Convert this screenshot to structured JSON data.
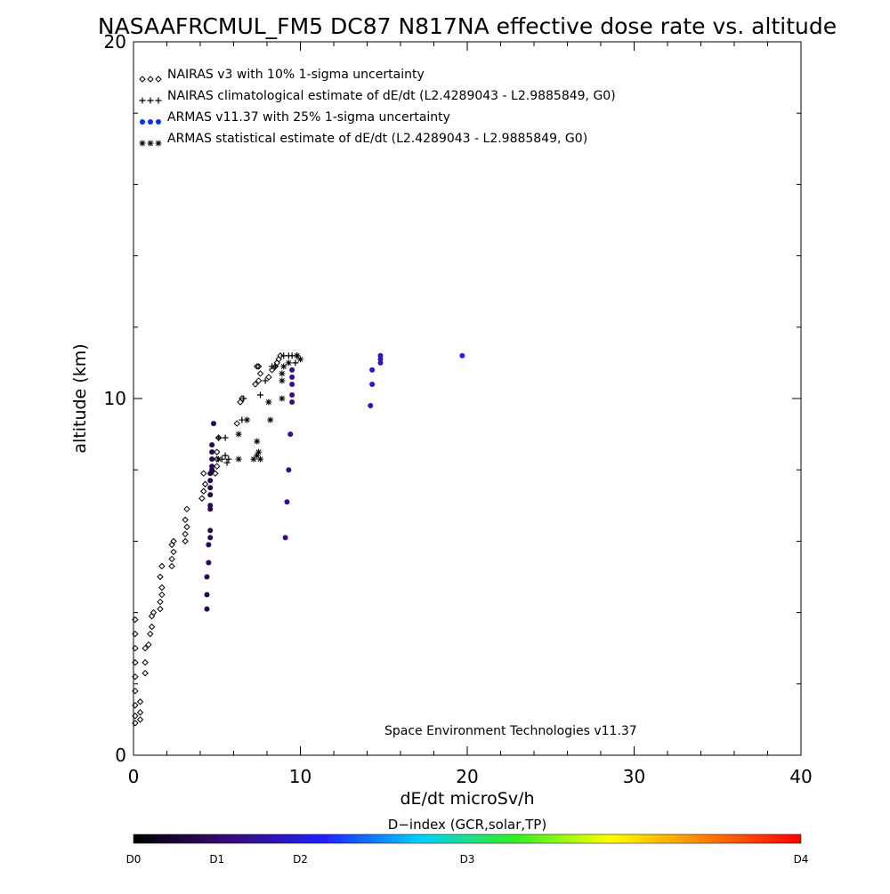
{
  "chart_data": {
    "type": "scatter",
    "title": "NASAAFRCMUL_FM5 DC87 N817NA effective dose rate vs. altitude",
    "xlabel": "dE/dt microSv/h",
    "ylabel": "altitude (km)",
    "xlim": [
      0,
      40
    ],
    "ylim": [
      0,
      20
    ],
    "x_ticks": [
      "0",
      "10",
      "20",
      "30",
      "40"
    ],
    "y_ticks": [
      "0",
      "10",
      "20"
    ],
    "grid": false,
    "legend_position": "top-left",
    "annotation": "Space Environment Technologies v11.37",
    "series": [
      {
        "name": "NAIRAS v3 with 10% 1-sigma uncertainty",
        "marker": "diamond",
        "color": "#000000",
        "points": [
          [
            0.1,
            0.9
          ],
          [
            0.1,
            1.1
          ],
          [
            0.1,
            1.4
          ],
          [
            0.1,
            1.8
          ],
          [
            0.1,
            2.2
          ],
          [
            0.1,
            2.6
          ],
          [
            0.1,
            3.0
          ],
          [
            0.1,
            3.4
          ],
          [
            0.1,
            3.8
          ],
          [
            0.4,
            1.0
          ],
          [
            0.4,
            1.2
          ],
          [
            0.4,
            1.5
          ],
          [
            0.7,
            2.3
          ],
          [
            0.7,
            2.6
          ],
          [
            0.7,
            3.0
          ],
          [
            0.9,
            3.1
          ],
          [
            1.0,
            3.4
          ],
          [
            1.1,
            3.6
          ],
          [
            1.1,
            3.9
          ],
          [
            1.2,
            4.0
          ],
          [
            1.6,
            4.1
          ],
          [
            1.6,
            4.3
          ],
          [
            1.7,
            4.5
          ],
          [
            1.7,
            4.7
          ],
          [
            1.6,
            5.0
          ],
          [
            1.7,
            5.3
          ],
          [
            2.3,
            5.3
          ],
          [
            2.3,
            5.5
          ],
          [
            2.4,
            5.7
          ],
          [
            2.3,
            5.9
          ],
          [
            2.4,
            6.0
          ],
          [
            3.1,
            6.0
          ],
          [
            3.1,
            6.2
          ],
          [
            3.2,
            6.4
          ],
          [
            3.1,
            6.6
          ],
          [
            3.2,
            6.9
          ],
          [
            4.1,
            7.2
          ],
          [
            4.2,
            7.4
          ],
          [
            4.3,
            7.6
          ],
          [
            4.2,
            7.9
          ],
          [
            4.9,
            7.9
          ],
          [
            5.0,
            8.1
          ],
          [
            5.0,
            8.3
          ],
          [
            5.0,
            8.5
          ],
          [
            5.1,
            8.9
          ],
          [
            6.2,
            9.3
          ],
          [
            6.4,
            9.9
          ],
          [
            6.5,
            10.0
          ],
          [
            7.3,
            10.4
          ],
          [
            7.5,
            10.5
          ],
          [
            7.6,
            10.7
          ],
          [
            7.5,
            10.9
          ],
          [
            7.4,
            10.9
          ],
          [
            8.1,
            10.6
          ],
          [
            8.3,
            10.8
          ],
          [
            8.5,
            10.9
          ],
          [
            8.6,
            11.0
          ],
          [
            8.7,
            11.1
          ],
          [
            8.8,
            11.2
          ]
        ]
      },
      {
        "name": "NAIRAS climatological estimate of dE/dt (L2.4289043 - L2.9885849, G0)",
        "marker": "plus",
        "color": "#000000",
        "points": [
          [
            5.3,
            8.3
          ],
          [
            5.5,
            8.4
          ],
          [
            5.7,
            8.3
          ],
          [
            5.6,
            8.2
          ],
          [
            5.1,
            8.9
          ],
          [
            5.5,
            8.9
          ],
          [
            6.5,
            9.4
          ],
          [
            6.6,
            10.0
          ],
          [
            7.6,
            10.1
          ],
          [
            7.9,
            10.5
          ],
          [
            8.3,
            10.9
          ],
          [
            8.5,
            10.9
          ],
          [
            9.0,
            11.2
          ],
          [
            9.3,
            11.2
          ],
          [
            9.5,
            11.2
          ],
          [
            9.8,
            11.2
          ],
          [
            9.7,
            11.0
          ]
        ]
      },
      {
        "name": "ARMAS v11.37 with 25% 1-sigma uncertainty",
        "marker": "dot",
        "color": "#0000ff",
        "points": [
          [
            4.4,
            4.1
          ],
          [
            4.4,
            4.5
          ],
          [
            4.4,
            5.0
          ],
          [
            4.5,
            5.4
          ],
          [
            4.5,
            5.9
          ],
          [
            4.6,
            6.1
          ],
          [
            4.6,
            6.3
          ],
          [
            4.6,
            6.9
          ],
          [
            4.6,
            7.0
          ],
          [
            4.6,
            7.3
          ],
          [
            4.6,
            7.5
          ],
          [
            4.6,
            7.7
          ],
          [
            4.6,
            7.9
          ],
          [
            4.7,
            8.0
          ],
          [
            4.7,
            8.1
          ],
          [
            4.7,
            8.3
          ],
          [
            4.7,
            8.5
          ],
          [
            4.7,
            8.7
          ],
          [
            4.8,
            9.3
          ],
          [
            9.1,
            6.1
          ],
          [
            9.2,
            7.1
          ],
          [
            9.3,
            8.0
          ],
          [
            9.4,
            9.0
          ],
          [
            9.5,
            9.9
          ],
          [
            9.5,
            10.1
          ],
          [
            9.5,
            10.4
          ],
          [
            9.5,
            10.6
          ],
          [
            9.5,
            10.8
          ],
          [
            14.2,
            9.8
          ],
          [
            14.3,
            10.4
          ],
          [
            14.3,
            10.8
          ],
          [
            14.8,
            11.0
          ],
          [
            14.8,
            11.1
          ],
          [
            14.8,
            11.2
          ],
          [
            19.7,
            11.2
          ]
        ]
      },
      {
        "name": "ARMAS statistical estimate of dE/dt (L2.4289043 - L2.9885849, G0)",
        "marker": "asterisk",
        "color": "#000000",
        "points": [
          [
            5.1,
            8.3
          ],
          [
            6.3,
            8.3
          ],
          [
            7.2,
            8.3
          ],
          [
            7.4,
            8.4
          ],
          [
            7.5,
            8.5
          ],
          [
            7.6,
            8.3
          ],
          [
            7.4,
            8.8
          ],
          [
            6.3,
            9.0
          ],
          [
            6.8,
            9.4
          ],
          [
            8.2,
            9.4
          ],
          [
            8.1,
            9.9
          ],
          [
            8.9,
            10.0
          ],
          [
            8.9,
            10.5
          ],
          [
            8.9,
            10.7
          ],
          [
            9.0,
            10.9
          ],
          [
            9.3,
            11.0
          ],
          [
            9.8,
            11.2
          ],
          [
            10.0,
            11.1
          ]
        ]
      }
    ],
    "colorbar": {
      "title": "D−index (GCR,solar,TP)",
      "labels": [
        "D0",
        "D1",
        "D2",
        "D3",
        "D4"
      ],
      "label_positions": [
        0,
        0.125,
        0.25,
        0.5,
        1.0
      ],
      "stops": [
        "#000000",
        "#3a0a78",
        "#2020ff",
        "#00d0ff",
        "#30f020",
        "#ffff00",
        "#ff8000",
        "#ff0000"
      ]
    }
  }
}
